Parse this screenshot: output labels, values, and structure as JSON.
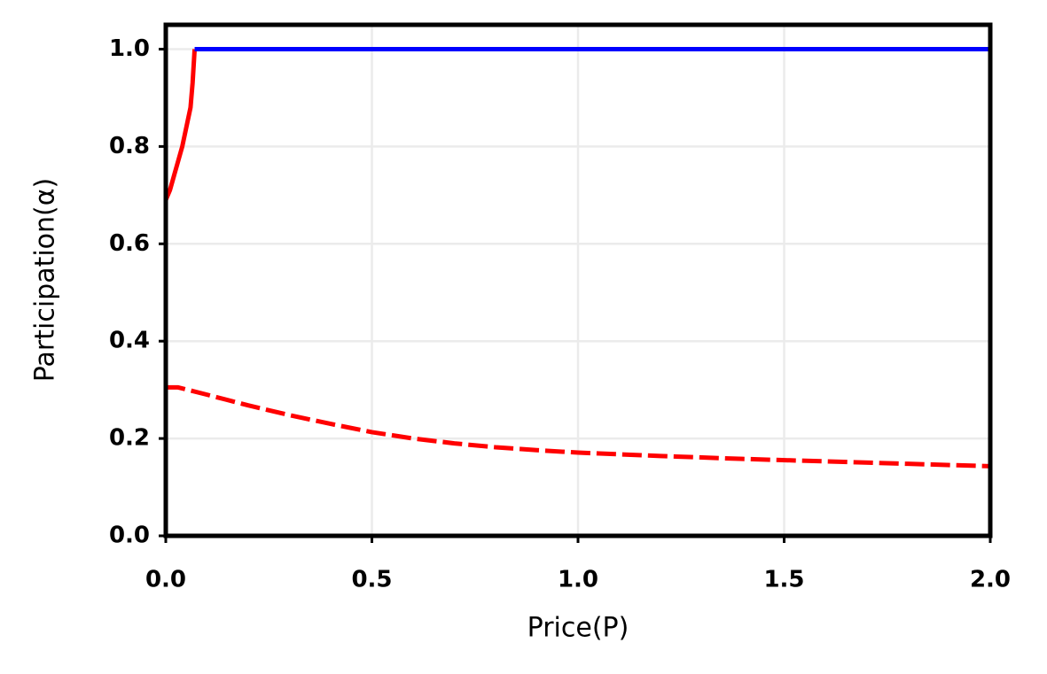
{
  "chart_data": {
    "type": "line",
    "xlabel": "Price(P)",
    "ylabel": "Participation(α)",
    "xlim": [
      0,
      2
    ],
    "ylim": [
      0,
      1.05
    ],
    "xticks": [
      {
        "value": 0,
        "label": "0.0"
      },
      0.5,
      {
        "value": 1,
        "label": "1.0"
      },
      1.5,
      {
        "value": 2,
        "label": "2.0"
      }
    ],
    "yticks": [
      {
        "value": 0,
        "label": "0.0"
      },
      0.2,
      0.4,
      0.6,
      0.8,
      {
        "value": 1,
        "label": "1.0"
      }
    ],
    "grid": true,
    "series": [
      {
        "color": "#ff0000",
        "dash": false,
        "x": [
          0,
          0.01,
          0.02,
          0.03,
          0.04,
          0.05,
          0.06,
          0.065,
          0.07
        ],
        "values": [
          0.69,
          0.71,
          0.74,
          0.77,
          0.8,
          0.84,
          0.88,
          0.93,
          1.0
        ]
      },
      {
        "color": "#0000ff",
        "dash": false,
        "x": [
          0.07,
          2.0
        ],
        "values": [
          1.0,
          1.0
        ]
      },
      {
        "color": "#ff0000",
        "dash": true,
        "x": [
          0,
          0.03,
          0.1,
          0.2,
          0.3,
          0.4,
          0.5,
          0.6,
          0.7,
          0.8,
          0.9,
          1.0,
          1.2,
          1.4,
          1.6,
          1.8,
          2.0
        ],
        "values": [
          0.305,
          0.305,
          0.29,
          0.268,
          0.248,
          0.23,
          0.213,
          0.2,
          0.19,
          0.182,
          0.176,
          0.171,
          0.164,
          0.158,
          0.153,
          0.148,
          0.143
        ]
      }
    ]
  }
}
